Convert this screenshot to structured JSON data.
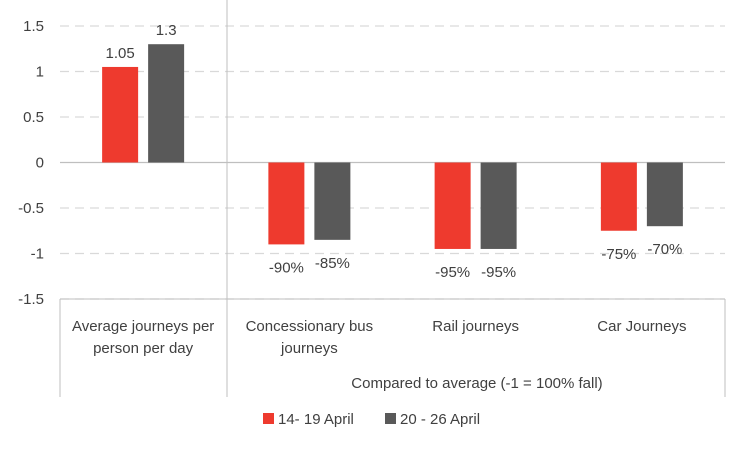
{
  "chart_data": {
    "type": "bar",
    "categories": [
      [
        "Average journeys per",
        "person per day"
      ],
      [
        "Concessionary bus",
        "journeys"
      ],
      [
        "Rail journeys"
      ],
      [
        "Car Journeys"
      ]
    ],
    "group_label": "Compared to average (-1 = 100% fall)",
    "series": [
      {
        "name": "14- 19 April",
        "values": [
          1.05,
          -0.9,
          -0.95,
          -0.75
        ],
        "labels": [
          "1.05",
          "-90%",
          "-95%",
          "-75%"
        ]
      },
      {
        "name": "20 - 26 April",
        "values": [
          1.3,
          -0.85,
          -0.95,
          -0.7
        ],
        "labels": [
          "1.3",
          "-85%",
          "-95%",
          "-70%"
        ]
      }
    ],
    "yticks": [
      "1.5",
      "1",
      "0.5",
      "0",
      "-0.5",
      "-1",
      "-1.5"
    ],
    "ylim": [
      -1.5,
      1.5
    ],
    "grid": true,
    "legend_position": "bottom",
    "colors": {
      "series": [
        "#ee3a2e",
        "#595959"
      ],
      "grid": "#d9d9d9",
      "axis": "#bfbfbf",
      "text": "#404040"
    }
  }
}
